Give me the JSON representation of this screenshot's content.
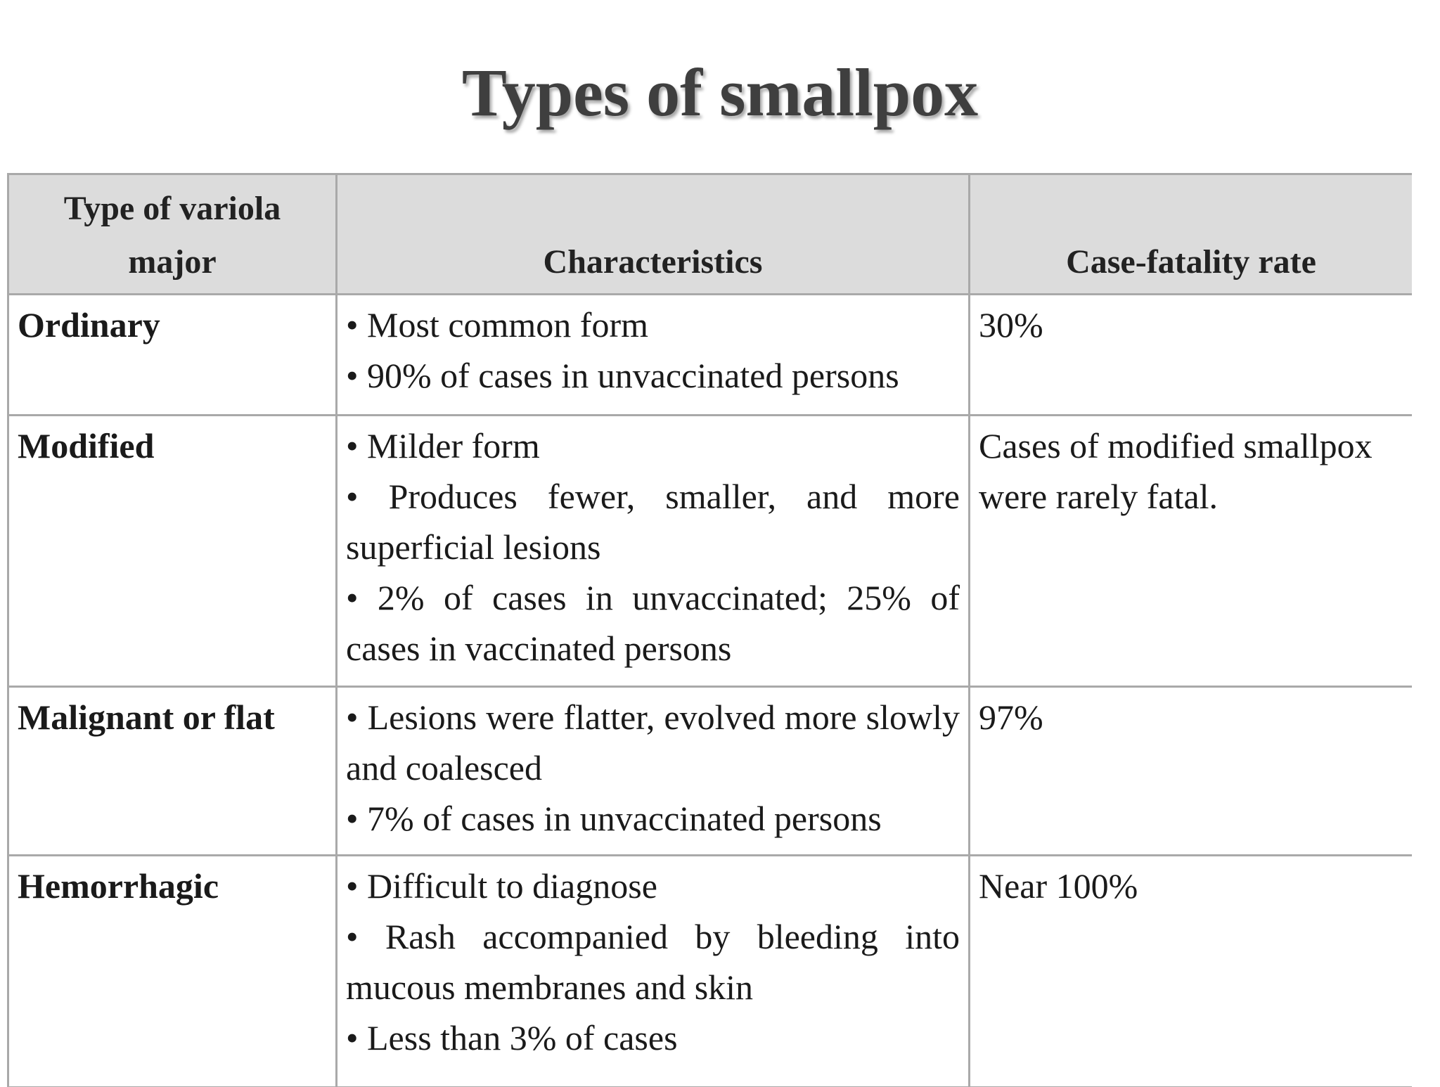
{
  "title": "Types of smallpox",
  "table": {
    "headers": [
      "Type of variola major",
      "Characteristics",
      "Case-fatality rate"
    ],
    "rows": [
      {
        "type": "Ordinary",
        "characteristics": [
          "• Most common form",
          "• 90% of cases in unvaccinated persons"
        ],
        "rate": "30%"
      },
      {
        "type": "Modified",
        "characteristics": [
          "• Milder form",
          "• Produces fewer, smaller, and more superficial lesions",
          "• 2% of cases in unvaccinated; 25% of cases in vaccinated persons"
        ],
        "rate": "Cases of modified smallpox were rarely fatal."
      },
      {
        "type": "Malignant or flat",
        "characteristics": [
          "• Lesions were flatter, evolved more slowly and coalesced",
          "• 7% of cases in unvaccinated persons"
        ],
        "rate": "97%"
      },
      {
        "type": "Hemorrhagic",
        "characteristics": [
          "• Difficult to diagnose",
          "• Rash accompanied by bleeding into mucous membranes and skin",
          "• Less than 3% of cases"
        ],
        "rate": "Near 100%"
      }
    ]
  }
}
